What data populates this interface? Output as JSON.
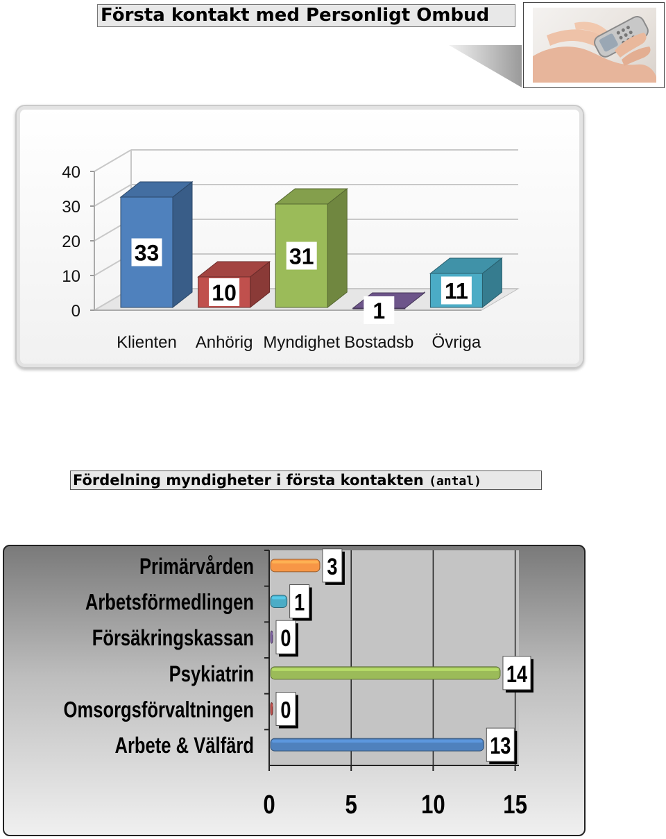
{
  "header": {
    "title": "Första kontakt med Personligt Ombud"
  },
  "photo": {
    "icon": "hand-holding-phone-photo"
  },
  "subtitle": {
    "main": "Fördelning myndigheter i första kontakten",
    "unit": "(antal)"
  },
  "chart_data": [
    {
      "type": "bar",
      "categories": [
        "Klienten",
        "Anhörig",
        "Myndighet",
        "Bostadsb",
        "Övriga"
      ],
      "values": [
        33,
        10,
        31,
        1,
        11
      ],
      "ylim": [
        0,
        40
      ],
      "yticks": [
        "0",
        "10",
        "20",
        "30",
        "40"
      ],
      "grid": true,
      "legend": "none",
      "colors": [
        "#4f81bd",
        "#c0504d",
        "#9bbb59",
        "#8064a2",
        "#4bacc6"
      ]
    },
    {
      "type": "bar",
      "orientation": "horizontal",
      "categories": [
        "Primärvården",
        "Arbetsförmedlingen",
        "Försäkringskassan",
        "Psykiatrin",
        "Omsorgsförvaltningen",
        "Arbete & Välfärd"
      ],
      "values": [
        3,
        1,
        0,
        14,
        0,
        13
      ],
      "xlim": [
        0,
        15
      ],
      "xticks": [
        "0",
        "5",
        "10",
        "15"
      ],
      "grid": true,
      "legend": "none",
      "colors": [
        "#f79646",
        "#4bacc6",
        "#8064a2",
        "#9bbb59",
        "#c0504d",
        "#4f81bd"
      ]
    }
  ]
}
